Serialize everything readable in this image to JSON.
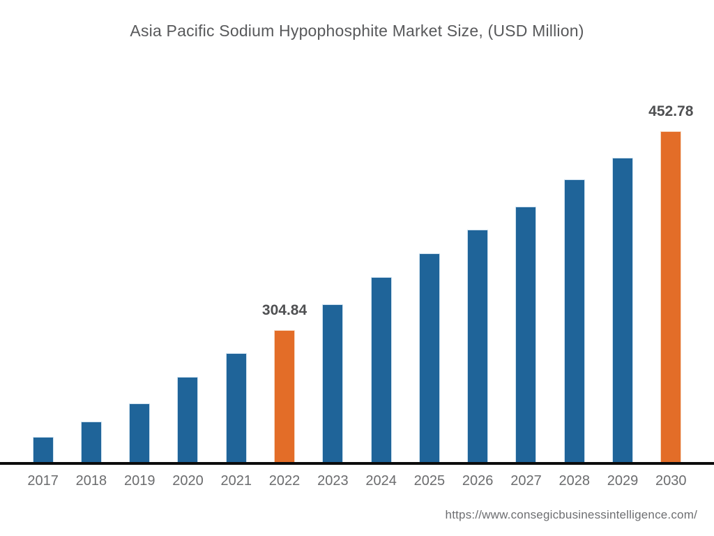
{
  "header": {
    "title": "Asia Pacific Sodium Hypophosphite Market Size, (USD Million)"
  },
  "footer": {
    "source_url": "https://www.consegicbusinessintelligence.com/"
  },
  "chart_data": {
    "type": "bar",
    "title": "Asia Pacific Sodium Hypophosphite Market Size, (USD Million)",
    "unit": "USD Million",
    "xlabel": "",
    "ylabel": "",
    "grid": false,
    "legend": false,
    "ylim": [
      204.3,
      480
    ],
    "categories": [
      "2017",
      "2018",
      "2019",
      "2020",
      "2021",
      "2022",
      "2023",
      "2024",
      "2025",
      "2026",
      "2027",
      "2028",
      "2029",
      "2030"
    ],
    "values": [
      225.3,
      236.6,
      250.1,
      269.9,
      287.6,
      304.84,
      324.1,
      344.4,
      362.1,
      379.8,
      397.0,
      416.8,
      433.0,
      452.78
    ],
    "point_labels": [
      "",
      "",
      "",
      "",
      "",
      "304.84",
      "",
      "",
      "",
      "",
      "",
      "",
      "",
      "452.78"
    ],
    "highlighted_categories": [
      "2022",
      "2030"
    ],
    "notes": "Only 2022 (304.84) and 2030 (452.78) carry explicit data labels; other values estimated from bar heights.",
    "colors": {
      "bar": "#1F6499",
      "bar_edge": "#cfe2f0",
      "highlight": "#E36D28",
      "highlight_edge": "#f6d9c2",
      "axis_line": "#0c0c0c",
      "title_text": "#58595b",
      "value_label_text": "#4f5052",
      "tick_text": "#6b6c6e",
      "footer_text": "#6d6e71",
      "background": "#ffffff"
    }
  }
}
